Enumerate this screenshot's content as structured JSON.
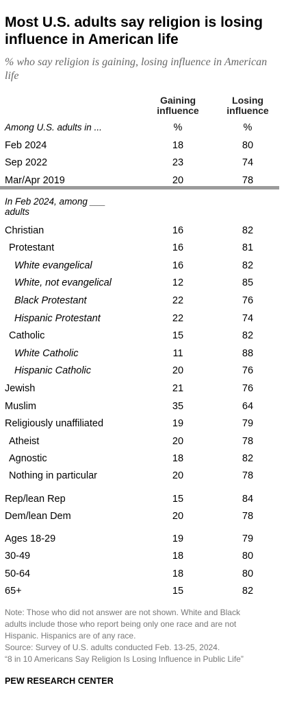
{
  "title": "Most U.S. adults say religion is losing influence in American life",
  "subtitle": "% who say religion is gaining, losing influence in American life",
  "columns": {
    "gaining": "Gaining influence",
    "losing": "Losing influence"
  },
  "units_row": {
    "label": "Among U.S. adults in ...",
    "gaining": "%",
    "losing": "%"
  },
  "section2_label": "In Feb 2024, among ___ adults",
  "chart_data": {
    "type": "table",
    "title": "Most U.S. adults say religion is losing influence in American life",
    "subtitle": "% who say religion is gaining, losing influence in American life",
    "columns": [
      "Gaining influence",
      "Losing influence"
    ],
    "rows": [
      {
        "label": "Feb 2024",
        "gaining": 18,
        "losing": 80,
        "indent": 0,
        "italic": false
      },
      {
        "label": "Sep 2022",
        "gaining": 23,
        "losing": 74,
        "indent": 0,
        "italic": false
      },
      {
        "label": "Mar/Apr 2019",
        "gaining": 20,
        "losing": 78,
        "indent": 0,
        "italic": false
      },
      {
        "label": "Christian",
        "gaining": 16,
        "losing": 82,
        "indent": 0,
        "italic": false
      },
      {
        "label": "Protestant",
        "gaining": 16,
        "losing": 81,
        "indent": 1,
        "italic": false
      },
      {
        "label": "White evangelical",
        "gaining": 16,
        "losing": 82,
        "indent": 2,
        "italic": true
      },
      {
        "label": "White, not evangelical",
        "gaining": 12,
        "losing": 85,
        "indent": 2,
        "italic": true
      },
      {
        "label": "Black Protestant",
        "gaining": 22,
        "losing": 76,
        "indent": 2,
        "italic": true
      },
      {
        "label": "Hispanic Protestant",
        "gaining": 22,
        "losing": 74,
        "indent": 2,
        "italic": true
      },
      {
        "label": "Catholic",
        "gaining": 15,
        "losing": 82,
        "indent": 1,
        "italic": false
      },
      {
        "label": "White Catholic",
        "gaining": 11,
        "losing": 88,
        "indent": 2,
        "italic": true
      },
      {
        "label": "Hispanic Catholic",
        "gaining": 20,
        "losing": 76,
        "indent": 2,
        "italic": true
      },
      {
        "label": "Jewish",
        "gaining": 21,
        "losing": 76,
        "indent": 0,
        "italic": false
      },
      {
        "label": "Muslim",
        "gaining": 35,
        "losing": 64,
        "indent": 0,
        "italic": false
      },
      {
        "label": "Religiously unaffiliated",
        "gaining": 19,
        "losing": 79,
        "indent": 0,
        "italic": false
      },
      {
        "label": "Atheist",
        "gaining": 20,
        "losing": 78,
        "indent": 1,
        "italic": false
      },
      {
        "label": "Agnostic",
        "gaining": 18,
        "losing": 82,
        "indent": 1,
        "italic": false
      },
      {
        "label": "Nothing in particular",
        "gaining": 20,
        "losing": 78,
        "indent": 1,
        "italic": false
      },
      {
        "label": "Rep/lean Rep",
        "gaining": 15,
        "losing": 84,
        "indent": 0,
        "italic": false
      },
      {
        "label": "Dem/lean Dem",
        "gaining": 20,
        "losing": 78,
        "indent": 0,
        "italic": false
      },
      {
        "label": "Ages 18-29",
        "gaining": 19,
        "losing": 79,
        "indent": 0,
        "italic": false
      },
      {
        "label": "30-49",
        "gaining": 18,
        "losing": 80,
        "indent": 0,
        "italic": false
      },
      {
        "label": "50-64",
        "gaining": 18,
        "losing": 80,
        "indent": 0,
        "italic": false
      },
      {
        "label": "65+",
        "gaining": 15,
        "losing": 82,
        "indent": 0,
        "italic": false
      }
    ]
  },
  "notes": [
    "Note: Those who did not answer are not shown. White and Black",
    "adults include those who report being only one race and are not",
    "Hispanic. Hispanics are of any race.",
    "Source: Survey of U.S. adults conducted Feb. 13-25, 2024.",
    "“8 in 10 Americans Say Religion Is Losing Influence in Public Life”"
  ],
  "brand": "PEW RESEARCH CENTER"
}
